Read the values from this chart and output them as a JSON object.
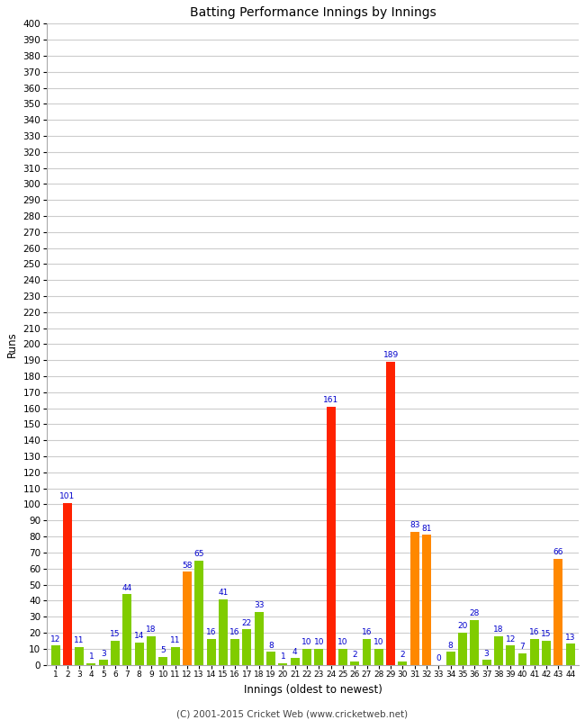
{
  "innings": [
    1,
    2,
    3,
    4,
    5,
    6,
    7,
    8,
    9,
    10,
    11,
    12,
    13,
    14,
    15,
    16,
    17,
    18,
    19,
    20,
    21,
    22,
    23,
    24,
    25,
    26,
    27,
    28,
    29,
    30,
    31,
    32,
    33,
    34,
    35,
    36,
    37,
    38,
    39,
    40,
    41,
    42,
    43,
    44
  ],
  "runs": [
    12,
    101,
    11,
    1,
    3,
    15,
    44,
    14,
    18,
    5,
    11,
    58,
    65,
    16,
    41,
    16,
    22,
    33,
    8,
    1,
    4,
    10,
    10,
    161,
    10,
    2,
    16,
    10,
    189,
    2,
    83,
    81,
    0,
    8,
    20,
    28,
    3,
    18,
    12,
    7,
    16,
    15,
    66,
    13
  ],
  "colors": [
    "#80cc00",
    "#ff2200",
    "#80cc00",
    "#80cc00",
    "#80cc00",
    "#80cc00",
    "#80cc00",
    "#80cc00",
    "#80cc00",
    "#80cc00",
    "#80cc00",
    "#ff8800",
    "#80cc00",
    "#80cc00",
    "#80cc00",
    "#80cc00",
    "#80cc00",
    "#80cc00",
    "#80cc00",
    "#80cc00",
    "#80cc00",
    "#80cc00",
    "#80cc00",
    "#ff2200",
    "#80cc00",
    "#80cc00",
    "#80cc00",
    "#80cc00",
    "#ff2200",
    "#80cc00",
    "#ff8800",
    "#ff8800",
    "#80cc00",
    "#80cc00",
    "#80cc00",
    "#80cc00",
    "#80cc00",
    "#80cc00",
    "#80cc00",
    "#80cc00",
    "#80cc00",
    "#80cc00",
    "#ff8800",
    "#80cc00"
  ],
  "title": "Batting Performance Innings by Innings",
  "xlabel": "Innings (oldest to newest)",
  "ylabel": "Runs",
  "ylim": [
    0,
    400
  ],
  "yticks": [
    0,
    10,
    20,
    30,
    40,
    50,
    60,
    70,
    80,
    90,
    100,
    110,
    120,
    130,
    140,
    150,
    160,
    170,
    180,
    190,
    200,
    210,
    220,
    230,
    240,
    250,
    260,
    270,
    280,
    290,
    300,
    310,
    320,
    330,
    340,
    350,
    360,
    370,
    380,
    390,
    400
  ],
  "footer": "(C) 2001-2015 Cricket Web (www.cricketweb.net)",
  "bg_color": "#ffffff",
  "grid_color": "#cccccc",
  "label_color": "#0000cc",
  "label_fontsize": 6.5,
  "bar_width": 0.75
}
